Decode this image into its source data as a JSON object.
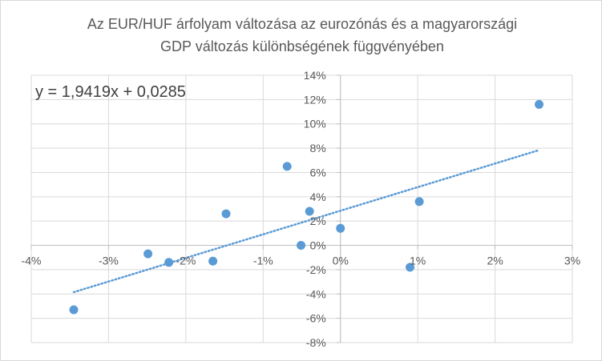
{
  "chart_data": {
    "type": "scatter",
    "title": [
      "Az EUR/HUF árfolyam változása az eurozónás és a magyarországi",
      "GDP változás különbségének függvényében"
    ],
    "xlabel": "",
    "ylabel": "",
    "xlim": [
      -0.04,
      0.03
    ],
    "ylim": [
      -0.08,
      0.14
    ],
    "x_ticks": [
      -0.04,
      -0.03,
      -0.02,
      -0.01,
      0,
      0.01,
      0.02,
      0.03
    ],
    "x_tick_labels": [
      "-4%",
      "-3%",
      "-2%",
      "-1%",
      "0%",
      "1%",
      "2%",
      "3%"
    ],
    "y_ticks": [
      -0.08,
      -0.06,
      -0.04,
      -0.02,
      0,
      0.02,
      0.04,
      0.06,
      0.08,
      0.1,
      0.12,
      0.14
    ],
    "y_tick_labels": [
      "-8%",
      "-6%",
      "-4%",
      "-2%",
      "0%",
      "2%",
      "4%",
      "6%",
      "8%",
      "10%",
      "12%",
      "14%"
    ],
    "grid": true,
    "series": [
      {
        "color": "#5b9bd5",
        "points": [
          {
            "x": -0.0345,
            "y": -0.053
          },
          {
            "x": -0.0249,
            "y": -0.007
          },
          {
            "x": -0.0222,
            "y": -0.014
          },
          {
            "x": -0.0165,
            "y": -0.013
          },
          {
            "x": -0.0148,
            "y": 0.026
          },
          {
            "x": -0.0069,
            "y": 0.065
          },
          {
            "x": -0.0051,
            "y": 0.0
          },
          {
            "x": -0.004,
            "y": 0.028
          },
          {
            "x": 0.0,
            "y": 0.014
          },
          {
            "x": 0.009,
            "y": -0.018
          },
          {
            "x": 0.0102,
            "y": 0.036
          },
          {
            "x": 0.0257,
            "y": 0.116
          }
        ]
      }
    ],
    "trendline": {
      "type": "linear",
      "slope": 1.9419,
      "intercept": 0.0285,
      "x_range": [
        -0.0345,
        0.0257
      ],
      "color": "#5b9bd5",
      "style": "dotted",
      "equation_label": "y = 1,9419x + 0,0285"
    },
    "colors": {
      "grid": "#d9d9d9",
      "axis": "#bfbfbf",
      "text": "#595959"
    }
  }
}
